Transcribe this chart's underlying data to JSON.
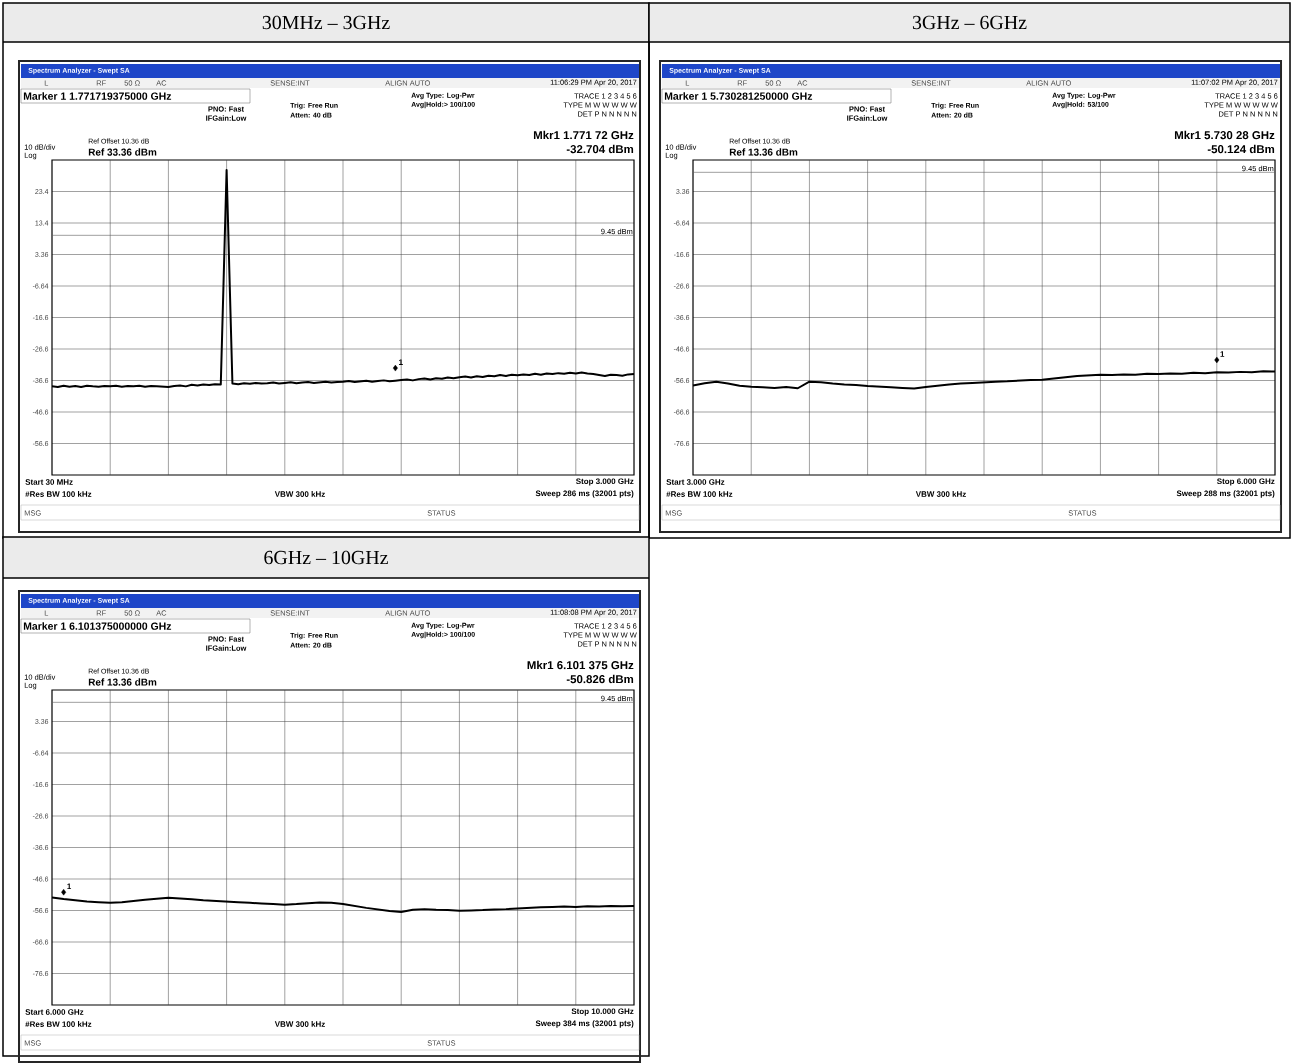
{
  "chart_data": [
    {
      "type": "line",
      "title": "30MHz – 3GHz",
      "categories": [
        null,
        null,
        null,
        null,
        null,
        null,
        null,
        null,
        null,
        null,
        null,
        null,
        null,
        null,
        null,
        null,
        null,
        null,
        null,
        null,
        null,
        null,
        null,
        null,
        null,
        null,
        null,
        null,
        null,
        null,
        null,
        null,
        null,
        null,
        null,
        null,
        null,
        null,
        null,
        null,
        null,
        null,
        null,
        null,
        null,
        null,
        null,
        null,
        null,
        null,
        null,
        null,
        null,
        null,
        null,
        null,
        null,
        null,
        null,
        null,
        null,
        null,
        null,
        null,
        null,
        null,
        null,
        null,
        null,
        null,
        null,
        null,
        null,
        null,
        null,
        null,
        null,
        null,
        null,
        null,
        null,
        null,
        null,
        null,
        null,
        null,
        null,
        null,
        null,
        null,
        null,
        null,
        null,
        null,
        null,
        null,
        null,
        null,
        null,
        null,
        null
      ],
      "series": [
        {
          "color": "#000000",
          "values": [
            -38.5,
            -38.7,
            -38.3,
            -38.6,
            -38.4,
            -38.7,
            -38.3,
            -38.5,
            -38.6,
            -38.4,
            -38.5,
            -38.3,
            -38.6,
            -38.4,
            -38.5,
            -38.3,
            -38.6,
            -38.4,
            -38.5,
            -38.6,
            -38.7,
            -38.4,
            -38.2,
            -38.5,
            -38.0,
            -38.2,
            -37.9,
            -38.1,
            -37.8,
            -37.9,
            30.2,
            -37.6,
            -37.8,
            -37.5,
            -37.7,
            -37.4,
            -37.6,
            -37.5,
            -37.3,
            -37.6,
            -37.4,
            -37.2,
            -37.5,
            -37.3,
            -37.1,
            -37.4,
            -37.2,
            -37.0,
            -37.3,
            -37.1,
            -37.0,
            -36.8,
            -37.1,
            -36.9,
            -36.7,
            -37.0,
            -36.8,
            -36.6,
            -36.9,
            -36.7,
            -36.5,
            -36.3,
            -36.6,
            -36.2,
            -36.0,
            -36.3,
            -35.9,
            -36.1,
            -35.7,
            -35.9,
            -35.6,
            -35.4,
            -35.7,
            -35.3,
            -35.5,
            -35.1,
            -35.3,
            -34.9,
            -35.2,
            -34.8,
            -35.0,
            -34.7,
            -34.9,
            -34.5,
            -34.8,
            -34.4,
            -34.6,
            -34.3,
            -34.5,
            -34.2,
            -34.4,
            -34.1,
            -34.4,
            -34.6,
            -34.9,
            -35.2,
            -34.8,
            -34.9,
            -35.1,
            -34.7,
            -34.6
          ]
        },
        {
          "type": "scatter",
          "marker": "diamond",
          "color": "#000000",
          "values": [
            null,
            null,
            null,
            null,
            null,
            null,
            null,
            null,
            null,
            null,
            null,
            null,
            null,
            null,
            null,
            null,
            null,
            null,
            null,
            null,
            null,
            null,
            null,
            null,
            null,
            null,
            null,
            null,
            null,
            null,
            null,
            null,
            null,
            null,
            null,
            null,
            null,
            null,
            null,
            null,
            null,
            null,
            null,
            null,
            null,
            null,
            null,
            null,
            null,
            null,
            null,
            null,
            null,
            null,
            null,
            null,
            null,
            null,
            null,
            -32.704,
            null,
            null,
            null,
            null,
            null,
            null,
            null,
            null,
            null,
            null,
            null,
            null,
            null,
            null,
            null,
            null,
            null,
            null,
            null,
            null,
            null,
            null,
            null,
            null,
            null,
            null,
            null,
            null,
            null,
            null,
            null,
            null,
            null,
            null,
            null,
            null,
            null,
            null,
            null,
            null,
            null
          ]
        }
      ],
      "ylim": [
        -66.64,
        33.36
      ],
      "yticks": [
        {
          "value": 23.36,
          "label": "23.4"
        },
        {
          "value": 13.36,
          "label": "13.4"
        },
        3.36,
        -6.64,
        {
          "value": -16.64,
          "label": "-16.6"
        },
        {
          "value": -26.64,
          "label": "-26.6"
        },
        {
          "value": -36.64,
          "label": "-36.6"
        },
        {
          "value": -46.64,
          "label": "-46.6"
        },
        {
          "value": -56.64,
          "label": "-56.6"
        }
      ],
      "grid": true,
      "ref_lines": [
        {
          "axis": "y",
          "value": 9.45,
          "label": "9.45 dBm",
          "color": "#606060"
        }
      ],
      "annotations": [
        "Spectrum Analyzer - Swept SA",
        "L",
        "RF",
        "50 Ω",
        "AC",
        "SENSE:INT",
        "ALIGN AUTO",
        "11:06:29 PM Apr 20, 2017",
        "Marker 1 1.771719375000 GHz",
        "PNO: Fast",
        "IFGain:Low",
        "Trig: Free Run",
        "Atten: 40 dB",
        "Avg Type: Log-Pwr",
        "Avg|Hold:> 100/100",
        "TRACE 1 2 3 4 5 6",
        "TYPE M W W W W W",
        "DET P N N N N N",
        "Mkr1 1.771 72 GHz",
        "-32.704 dBm",
        "Ref Offset 10.36 dB",
        "10 dB/div",
        "Ref 33.36 dBm",
        "Log",
        "Start 30 MHz",
        "#Res BW 100 kHz",
        "VBW 300 kHz",
        "Stop 3.000 GHz",
        "Sweep  286 ms (32001 pts)",
        "MSG",
        "STATUS",
        "1"
      ]
    },
    {
      "type": "line",
      "title": "3GHz – 6GHz",
      "categories": [
        null,
        null,
        null,
        null,
        null,
        null,
        null,
        null,
        null,
        null,
        null,
        null,
        null,
        null,
        null,
        null,
        null,
        null,
        null,
        null,
        null,
        null,
        null,
        null,
        null,
        null,
        null,
        null,
        null,
        null,
        null,
        null,
        null,
        null,
        null,
        null,
        null,
        null,
        null,
        null,
        null,
        null,
        null,
        null,
        null,
        null,
        null,
        null,
        null,
        null,
        null
      ],
      "series": [
        {
          "color": "#000000",
          "values": [
            -58.2,
            -57.5,
            -57.0,
            -57.6,
            -58.3,
            -58.6,
            -58.8,
            -59.0,
            -58.7,
            -59.1,
            -57.0,
            -57.2,
            -57.6,
            -57.9,
            -58.1,
            -58.4,
            -58.6,
            -58.8,
            -59.0,
            -59.2,
            -58.7,
            -58.3,
            -57.9,
            -57.6,
            -57.4,
            -57.2,
            -57.0,
            -56.9,
            -56.7,
            -56.5,
            -56.4,
            -56.0,
            -55.6,
            -55.2,
            -55.0,
            -54.8,
            -54.9,
            -54.7,
            -54.8,
            -54.5,
            -54.6,
            -54.4,
            -54.5,
            -54.2,
            -54.3,
            -54.0,
            -54.1,
            -53.9,
            -54.0,
            -53.7,
            -53.8
          ]
        },
        {
          "type": "scatter",
          "marker": "diamond",
          "color": "#000000",
          "values": [
            null,
            null,
            null,
            null,
            null,
            null,
            null,
            null,
            null,
            null,
            null,
            null,
            null,
            null,
            null,
            null,
            null,
            null,
            null,
            null,
            null,
            null,
            null,
            null,
            null,
            null,
            null,
            null,
            null,
            null,
            null,
            null,
            null,
            null,
            null,
            null,
            null,
            null,
            null,
            null,
            null,
            null,
            null,
            null,
            null,
            -50.124,
            null,
            null,
            null,
            null,
            null
          ]
        }
      ],
      "ylim": [
        -86.64,
        13.36
      ],
      "yticks": [
        3.36,
        -6.64,
        {
          "value": -16.64,
          "label": "-16.6"
        },
        {
          "value": -26.64,
          "label": "-26.6"
        },
        {
          "value": -36.64,
          "label": "-36.6"
        },
        {
          "value": -46.64,
          "label": "-46.6"
        },
        {
          "value": -56.64,
          "label": "-56.6"
        },
        {
          "value": -66.64,
          "label": "-66.6"
        },
        {
          "value": -76.64,
          "label": "-76.6"
        }
      ],
      "grid": true,
      "ref_lines": [
        {
          "axis": "y",
          "value": 9.45,
          "label": "9.45 dBm",
          "color": "#606060"
        }
      ],
      "annotations": [
        "Spectrum Analyzer - Swept SA",
        "L",
        "RF",
        "50 Ω",
        "AC",
        "SENSE:INT",
        "ALIGN AUTO",
        "11:07:02 PM Apr 20, 2017",
        "Marker 1 5.730281250000 GHz",
        "PNO: Fast",
        "IFGain:Low",
        "Trig: Free Run",
        "Atten: 20 dB",
        "Avg Type: Log-Pwr",
        "Avg|Hold: 53/100",
        "TRACE 1 2 3 4 5 6",
        "TYPE M W W W W W",
        "DET P N N N N N",
        "Mkr1 5.730 28 GHz",
        "-50.124 dBm",
        "Ref Offset 10.36 dB",
        "10 dB/div",
        "Ref 13.36 dBm",
        "Log",
        "Start 3.000 GHz",
        "#Res BW 100 kHz",
        "VBW 300 kHz",
        "Stop 6.000 GHz",
        "Sweep  288 ms (32001 pts)",
        "MSG",
        "STATUS",
        "1"
      ]
    },
    {
      "type": "line",
      "title": "6GHz – 10GHz",
      "categories": [
        null,
        null,
        null,
        null,
        null,
        null,
        null,
        null,
        null,
        null,
        null,
        null,
        null,
        null,
        null,
        null,
        null,
        null,
        null,
        null,
        null,
        null,
        null,
        null,
        null,
        null,
        null,
        null,
        null,
        null,
        null,
        null,
        null,
        null,
        null,
        null,
        null,
        null,
        null,
        null,
        null,
        null,
        null,
        null,
        null,
        null,
        null,
        null,
        null,
        null,
        null
      ],
      "series": [
        {
          "color": "#000000",
          "values": [
            -52.5,
            -53.0,
            -53.4,
            -53.8,
            -54.0,
            -54.2,
            -54.0,
            -53.6,
            -53.2,
            -52.9,
            -52.6,
            -52.8,
            -53.1,
            -53.4,
            -53.6,
            -53.8,
            -54.0,
            -54.2,
            -54.4,
            -54.6,
            -54.8,
            -54.6,
            -54.3,
            -54.1,
            -54.2,
            -54.6,
            -55.2,
            -55.8,
            -56.3,
            -56.8,
            -57.1,
            -56.4,
            -56.2,
            -56.4,
            -56.5,
            -56.7,
            -56.6,
            -56.5,
            -56.3,
            -56.2,
            -56.0,
            -55.8,
            -55.6,
            -55.5,
            -55.4,
            -55.5,
            -55.3,
            -55.4,
            -55.2,
            -55.3,
            -55.2
          ]
        },
        {
          "type": "scatter",
          "marker": "diamond",
          "color": "#000000",
          "values": [
            null,
            -50.826,
            null,
            null,
            null,
            null,
            null,
            null,
            null,
            null,
            null,
            null,
            null,
            null,
            null,
            null,
            null,
            null,
            null,
            null,
            null,
            null,
            null,
            null,
            null,
            null,
            null,
            null,
            null,
            null,
            null,
            null,
            null,
            null,
            null,
            null,
            null,
            null,
            null,
            null,
            null,
            null,
            null,
            null,
            null,
            null,
            null,
            null,
            null,
            null,
            null
          ]
        }
      ],
      "ylim": [
        -86.64,
        13.36
      ],
      "yticks": [
        3.36,
        -6.64,
        {
          "value": -16.64,
          "label": "-16.6"
        },
        {
          "value": -26.64,
          "label": "-26.6"
        },
        {
          "value": -36.64,
          "label": "-36.6"
        },
        {
          "value": -46.64,
          "label": "-46.6"
        },
        {
          "value": -56.64,
          "label": "-56.6"
        },
        {
          "value": -66.64,
          "label": "-66.6"
        },
        {
          "value": -76.64,
          "label": "-76.6"
        }
      ],
      "grid": true,
      "ref_lines": [
        {
          "axis": "y",
          "value": 9.45,
          "label": "9.45 dBm",
          "color": "#606060"
        }
      ],
      "annotations": [
        "Spectrum Analyzer - Swept SA",
        "L",
        "RF",
        "50 Ω",
        "AC",
        "SENSE:INT",
        "ALIGN AUTO",
        "11:08:08 PM Apr 20, 2017",
        "Marker 1 6.101375000000 GHz",
        "PNO: Fast",
        "IFGain:Low",
        "Trig: Free Run",
        "Atten: 20 dB",
        "Avg Type: Log-Pwr",
        "Avg|Hold:> 100/100",
        "TRACE 1 2 3 4 5 6",
        "TYPE M W W W W W",
        "DET P N N N N N",
        "Mkr1 6.101 375 GHz",
        "-50.826 dBm",
        "Ref Offset 10.36 dB",
        "10 dB/div",
        "Ref 13.36 dBm",
        "Log",
        "Start 6.000 GHz",
        "#Res BW 100 kHz",
        "VBW 300 kHz",
        "Stop 10.000 GHz",
        "Sweep  384 ms (32001 pts)",
        "MSG",
        "STATUS",
        "1"
      ]
    }
  ]
}
